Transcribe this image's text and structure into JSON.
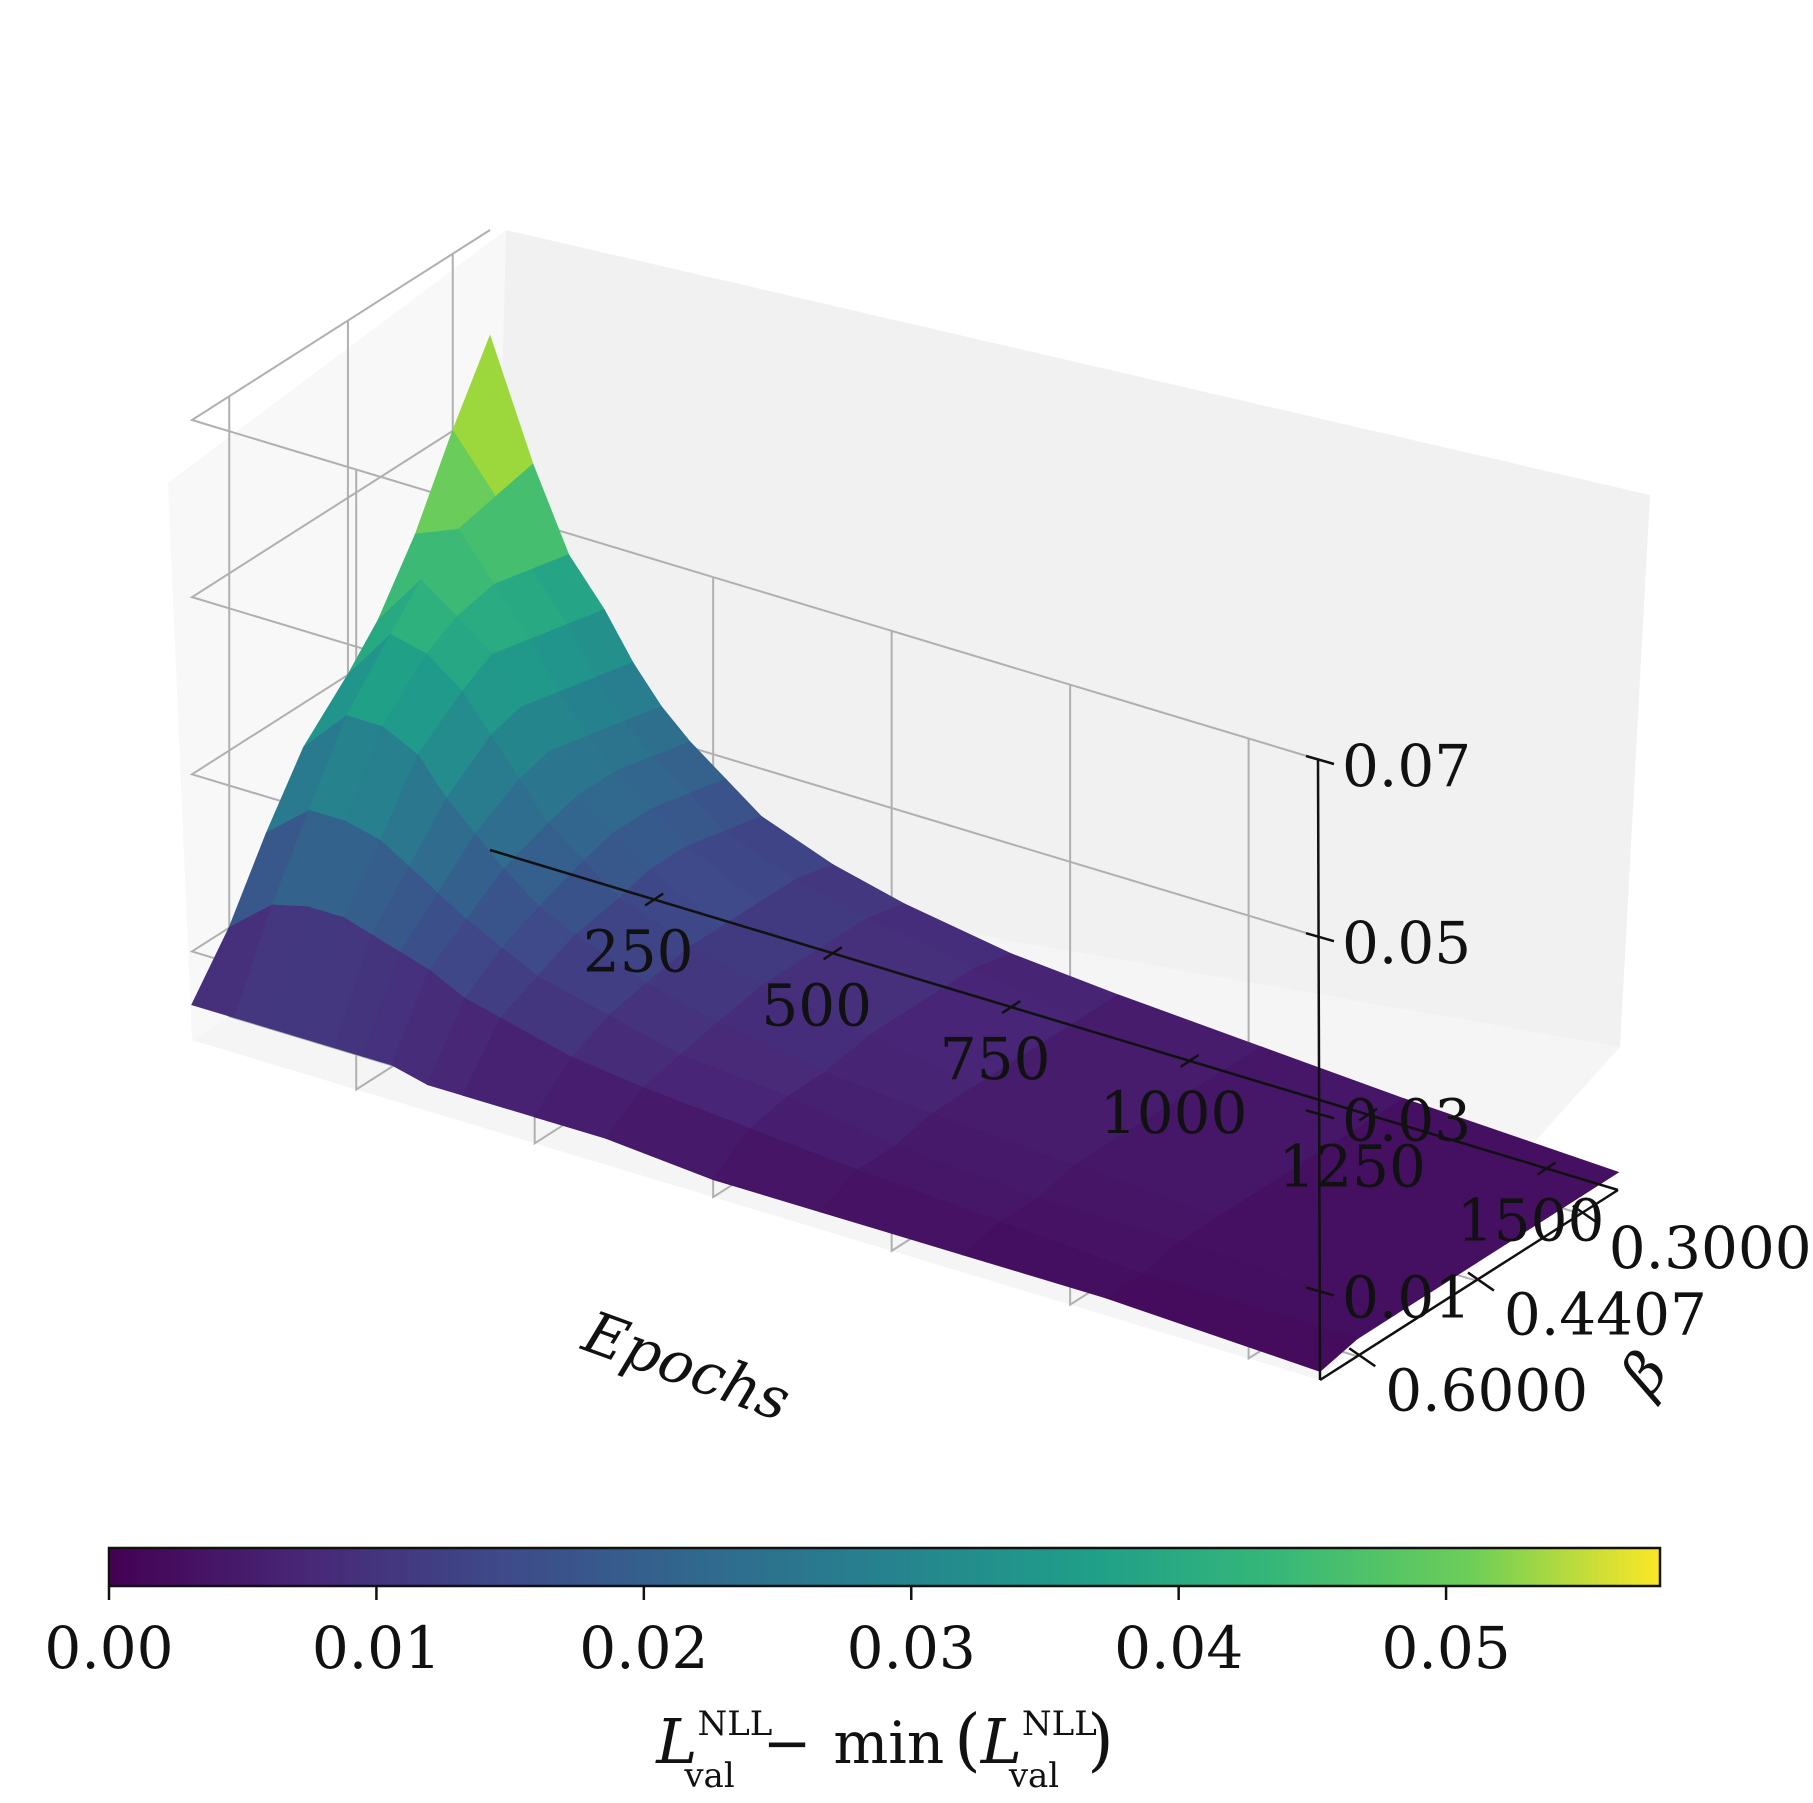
{
  "chart_data": {
    "type": "surface3d",
    "title": "",
    "x_axis": {
      "label": "Epochs",
      "ticks": [
        250,
        500,
        750,
        1000,
        1250,
        1500
      ],
      "tick_labels": [
        "250",
        "500",
        "750",
        "1000",
        "1250",
        "1500"
      ],
      "range": [
        20,
        1600
      ]
    },
    "y_axis": {
      "label": "β",
      "ticks": [
        0.3,
        0.4407,
        0.6
      ],
      "tick_labels": [
        "0.3000",
        "0.4407",
        "0.6000"
      ],
      "range": [
        0.25,
        0.65
      ]
    },
    "z_axis": {
      "label": "",
      "ticks": [
        0.01,
        0.03,
        0.05,
        0.07
      ],
      "tick_labels": [
        "0.01",
        "0.03",
        "0.05",
        "0.07"
      ],
      "range": [
        0.0,
        0.07
      ]
    },
    "grid": true,
    "colormap": "viridis",
    "colorbar": {
      "orientation": "horizontal",
      "placement": "bottom",
      "range": [
        0.0,
        0.058
      ],
      "ticks": [
        0.0,
        0.01,
        0.02,
        0.03,
        0.04,
        0.05
      ],
      "tick_labels": [
        "0.00",
        "0.01",
        "0.02",
        "0.03",
        "0.04",
        "0.05"
      ],
      "label_main": "L",
      "label_sup": "NLL",
      "label_sub": "val",
      "label_minus": "−",
      "label_min": "min",
      "label_open": "(",
      "label_close": ")"
    },
    "epochs": [
      20,
      80,
      130,
      180,
      220,
      260,
      300,
      350,
      400,
      500,
      600,
      750,
      900,
      1100,
      1300,
      1600
    ],
    "betas": [
      0.25,
      0.3,
      0.35,
      0.4,
      0.4407,
      0.5,
      0.55,
      0.6,
      0.65
    ],
    "z": [
      [
        0.058,
        0.045,
        0.036,
        0.031,
        0.026,
        0.022,
        0.019,
        0.016,
        0.013,
        0.01,
        0.008,
        0.006,
        0.005,
        0.004,
        0.003,
        0.002
      ],
      [
        0.05,
        0.044,
        0.037,
        0.032,
        0.027,
        0.023,
        0.02,
        0.017,
        0.014,
        0.011,
        0.009,
        0.007,
        0.005,
        0.004,
        0.003,
        0.002
      ],
      [
        0.041,
        0.043,
        0.038,
        0.033,
        0.028,
        0.024,
        0.021,
        0.018,
        0.015,
        0.011,
        0.009,
        0.007,
        0.005,
        0.004,
        0.003,
        0.002
      ],
      [
        0.034,
        0.04,
        0.037,
        0.034,
        0.029,
        0.025,
        0.021,
        0.018,
        0.015,
        0.011,
        0.009,
        0.007,
        0.005,
        0.004,
        0.003,
        0.002
      ],
      [
        0.03,
        0.036,
        0.035,
        0.032,
        0.028,
        0.024,
        0.02,
        0.017,
        0.014,
        0.011,
        0.009,
        0.007,
        0.005,
        0.004,
        0.003,
        0.002
      ],
      [
        0.025,
        0.03,
        0.03,
        0.028,
        0.024,
        0.021,
        0.018,
        0.015,
        0.013,
        0.01,
        0.008,
        0.006,
        0.005,
        0.004,
        0.003,
        0.002
      ],
      [
        0.018,
        0.022,
        0.022,
        0.021,
        0.019,
        0.017,
        0.015,
        0.013,
        0.011,
        0.009,
        0.007,
        0.006,
        0.004,
        0.003,
        0.003,
        0.002
      ],
      [
        0.01,
        0.014,
        0.015,
        0.015,
        0.014,
        0.013,
        0.012,
        0.01,
        0.009,
        0.007,
        0.006,
        0.005,
        0.004,
        0.003,
        0.002,
        0.002
      ],
      [
        0.004,
        0.004,
        0.004,
        0.004,
        0.004,
        0.004,
        0.004,
        0.003,
        0.003,
        0.003,
        0.003,
        0.002,
        0.002,
        0.002,
        0.002,
        0.001
      ]
    ]
  }
}
